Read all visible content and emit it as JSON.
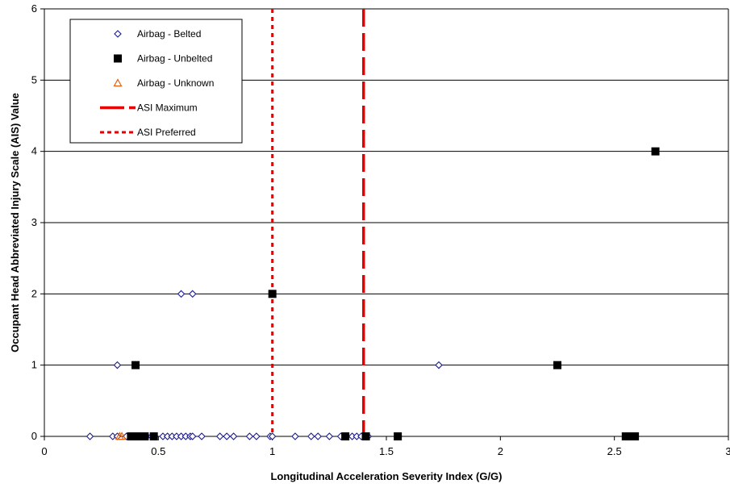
{
  "chart_data": {
    "type": "scatter",
    "xlabel": "Longitudinal Acceleration Severity Index (G/G)",
    "ylabel": "Occupant Head Abbreviated Injury Scale (AIS) Value",
    "xlim": [
      0,
      3
    ],
    "ylim": [
      0,
      6
    ],
    "x_ticks": [
      "0",
      "0.5",
      "1",
      "1.5",
      "2",
      "2.5",
      "3"
    ],
    "y_ticks": [
      "0",
      "1",
      "2",
      "3",
      "4",
      "5",
      "6"
    ],
    "grid": "horizontal",
    "legend_position": "top-left",
    "series": [
      {
        "name": "Airbag - Belted",
        "marker": "diamond-open",
        "color": "#1a1a8c",
        "points": [
          [
            0.2,
            0
          ],
          [
            0.3,
            0
          ],
          [
            0.32,
            0
          ],
          [
            0.36,
            0
          ],
          [
            0.41,
            0
          ],
          [
            0.43,
            0
          ],
          [
            0.45,
            0
          ],
          [
            0.47,
            0
          ],
          [
            0.52,
            0
          ],
          [
            0.54,
            0
          ],
          [
            0.56,
            0
          ],
          [
            0.58,
            0
          ],
          [
            0.6,
            0
          ],
          [
            0.62,
            0
          ],
          [
            0.64,
            0
          ],
          [
            0.65,
            0
          ],
          [
            0.69,
            0
          ],
          [
            0.77,
            0
          ],
          [
            0.8,
            0
          ],
          [
            0.83,
            0
          ],
          [
            0.9,
            0
          ],
          [
            0.93,
            0
          ],
          [
            0.99,
            0
          ],
          [
            1.0,
            0
          ],
          [
            1.1,
            0
          ],
          [
            1.17,
            0
          ],
          [
            1.2,
            0
          ],
          [
            1.25,
            0
          ],
          [
            1.3,
            0
          ],
          [
            1.35,
            0
          ],
          [
            1.37,
            0
          ],
          [
            1.39,
            0
          ],
          [
            1.42,
            0
          ],
          [
            0.32,
            1
          ],
          [
            1.73,
            1
          ],
          [
            0.6,
            2
          ],
          [
            0.65,
            2
          ]
        ]
      },
      {
        "name": "Airbag - Unbelted",
        "marker": "square-filled",
        "color": "#000000",
        "points": [
          [
            0.38,
            0
          ],
          [
            0.4,
            0
          ],
          [
            0.42,
            0
          ],
          [
            0.43,
            0
          ],
          [
            0.44,
            0
          ],
          [
            0.48,
            0
          ],
          [
            1.32,
            0
          ],
          [
            1.41,
            0
          ],
          [
            1.55,
            0
          ],
          [
            2.55,
            0
          ],
          [
            2.57,
            0
          ],
          [
            2.59,
            0
          ],
          [
            0.4,
            1
          ],
          [
            2.25,
            1
          ],
          [
            1.0,
            2
          ],
          [
            2.68,
            4
          ]
        ]
      },
      {
        "name": "Airbag - Unknown",
        "marker": "triangle-open",
        "color": "#e06010",
        "points": [
          [
            0.33,
            0
          ],
          [
            0.34,
            0
          ]
        ]
      }
    ],
    "reference_lines": [
      {
        "name": "ASI Maximum",
        "x": 1.4,
        "style": "long-dash",
        "color": "#e60000"
      },
      {
        "name": "ASI Preferred",
        "x": 1.0,
        "style": "short-dash",
        "color": "#e60000"
      }
    ]
  }
}
